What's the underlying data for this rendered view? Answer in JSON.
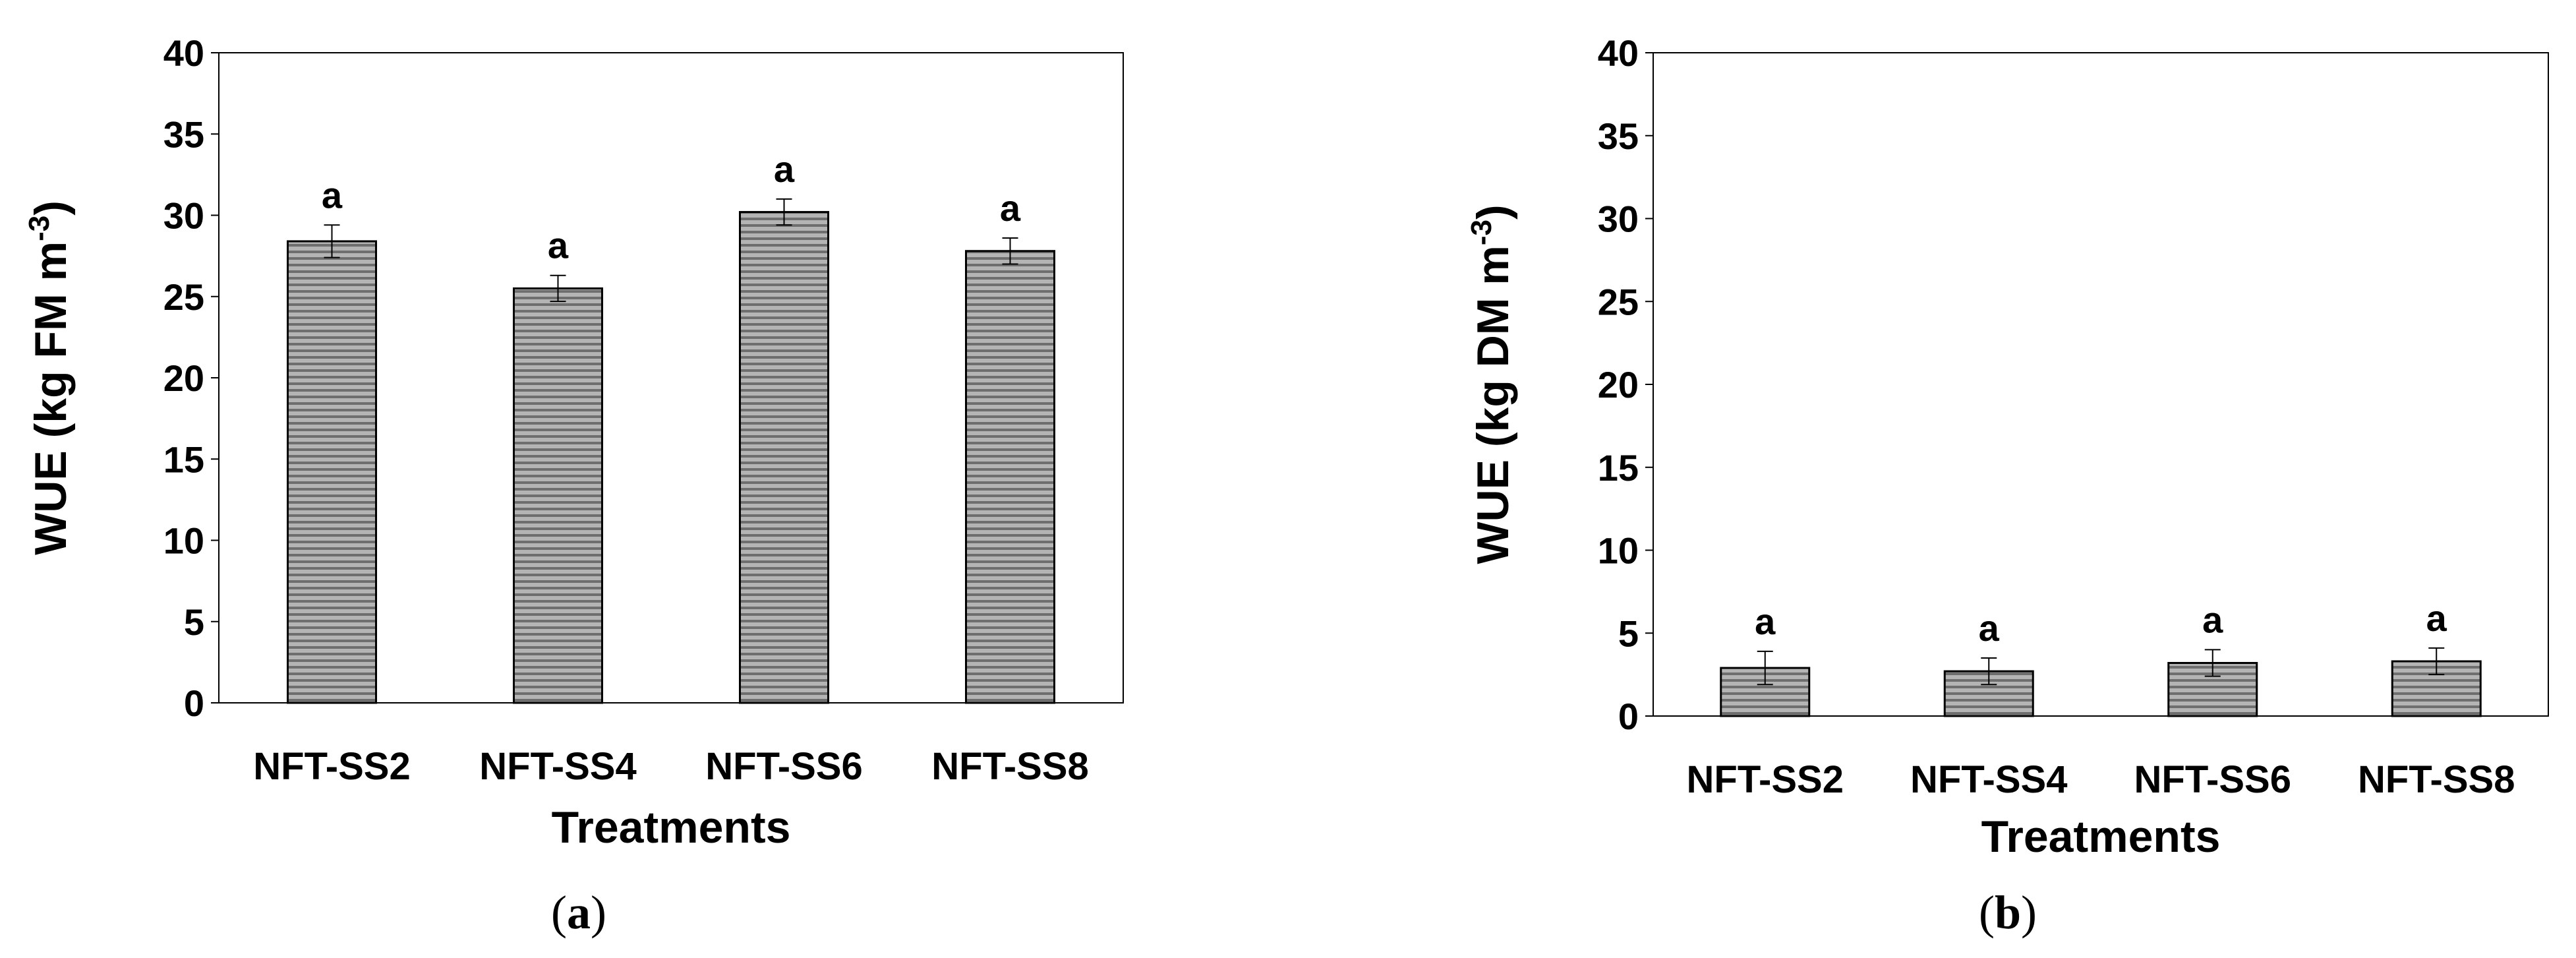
{
  "chart_data": [
    {
      "type": "bar",
      "panel_label": "a",
      "categories": [
        "NFT-SS2",
        "NFT-SS4",
        "NFT-SS6",
        "NFT-SS8"
      ],
      "values": [
        28.4,
        25.5,
        30.2,
        27.8
      ],
      "errors": [
        1.0,
        0.8,
        0.8,
        0.8
      ],
      "significance": [
        "a",
        "a",
        "a",
        "a"
      ],
      "xlabel": "Treatments",
      "ylabel_main": "WUE (kg FM m",
      "ylabel_sup": "-3",
      "ylabel_end": ")",
      "ylim": [
        0,
        40
      ],
      "yticks": [
        "0",
        "5",
        "10",
        "15",
        "20",
        "25",
        "30",
        "35",
        "40"
      ],
      "grid": false,
      "bar_fill": "#b4b4b4",
      "bar_stripe": "#6e6e6e"
    },
    {
      "type": "bar",
      "panel_label": "b",
      "categories": [
        "NFT-SS2",
        "NFT-SS4",
        "NFT-SS6",
        "NFT-SS8"
      ],
      "values": [
        2.9,
        2.7,
        3.2,
        3.3
      ],
      "errors": [
        1.0,
        0.8,
        0.8,
        0.8
      ],
      "significance": [
        "a",
        "a",
        "a",
        "a"
      ],
      "xlabel": "Treatments",
      "ylabel_main": "WUE (kg DM m",
      "ylabel_sup": "-3",
      "ylabel_end": ")",
      "ylim": [
        0,
        40
      ],
      "yticks": [
        "0",
        "5",
        "10",
        "15",
        "20",
        "25",
        "30",
        "35",
        "40"
      ],
      "grid": false,
      "bar_fill": "#b4b4b4",
      "bar_stripe": "#6e6e6e"
    }
  ]
}
